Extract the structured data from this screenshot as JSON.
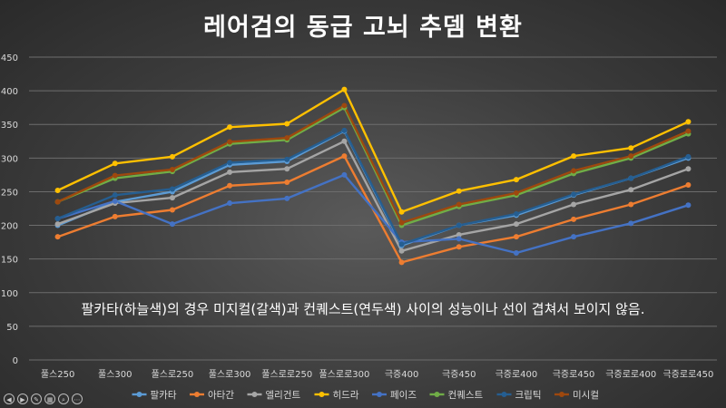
{
  "title": "레어검의 동급 고뇌 추뎀 변환",
  "note": "팔카타(하늘색)의 경우 미지컬(갈색)과 컨퀘스트(연두색) 사이의 성능이나 선이 겹쳐서 보이지 않음.",
  "slide_controls": [
    {
      "name": "prev-slide-button",
      "glyph": "◀"
    },
    {
      "name": "next-slide-button",
      "glyph": "▶"
    },
    {
      "name": "pen-tool-button",
      "glyph": "✎"
    },
    {
      "name": "slide-sorter-button",
      "glyph": "▦"
    },
    {
      "name": "zoom-button",
      "glyph": "⌕"
    },
    {
      "name": "more-options-button",
      "glyph": "⋯"
    }
  ],
  "chart_data": {
    "type": "line",
    "title": "레어검의 동급 고뇌 추뎀 변환",
    "categories": [
      "풀스250",
      "풀스300",
      "풀스로250",
      "풀스로300",
      "풀스로로250",
      "풀스로로300",
      "극증400",
      "극증450",
      "극증로400",
      "극증로450",
      "극증로로400",
      "극증로로450"
    ],
    "ylim": [
      0,
      450
    ],
    "yticks": [
      0,
      50,
      100,
      150,
      200,
      250,
      300,
      350,
      400,
      450
    ],
    "grid": true,
    "legend_position": "bottom",
    "series": [
      {
        "name": "팔카타",
        "color": "#5b9bd5",
        "values": [
          200,
          235,
          250,
          290,
          295,
          340,
          170,
          200,
          215,
          245,
          270,
          300
        ]
      },
      {
        "name": "아타간",
        "color": "#ed7d31",
        "values": [
          183,
          213,
          223,
          259,
          264,
          303,
          145,
          168,
          183,
          209,
          231,
          260
        ]
      },
      {
        "name": "엘리건트",
        "color": "#a5a5a5",
        "values": [
          202,
          233,
          241,
          279,
          284,
          325,
          162,
          186,
          202,
          231,
          253,
          284
        ]
      },
      {
        "name": "히드라",
        "color": "#ffc000",
        "values": [
          252,
          292,
          302,
          346,
          351,
          402,
          220,
          251,
          268,
          303,
          315,
          354
        ]
      },
      {
        "name": "페이즈",
        "color": "#4472c4",
        "values": [
          210,
          236,
          202,
          233,
          240,
          275,
          175,
          180,
          159,
          183,
          203,
          230
        ]
      },
      {
        "name": "컨퀘스트",
        "color": "#70ad47",
        "values": [
          235,
          270,
          280,
          321,
          327,
          375,
          200,
          228,
          245,
          277,
          300,
          336
        ]
      },
      {
        "name": "크립틱",
        "color": "#255e91",
        "values": [
          210,
          245,
          254,
          293,
          298,
          341,
          172,
          200,
          217,
          246,
          270,
          302
        ]
      },
      {
        "name": "미시컬",
        "color": "#9e480e",
        "values": [
          235,
          274,
          283,
          324,
          330,
          378,
          204,
          231,
          248,
          281,
          303,
          340
        ]
      }
    ]
  }
}
